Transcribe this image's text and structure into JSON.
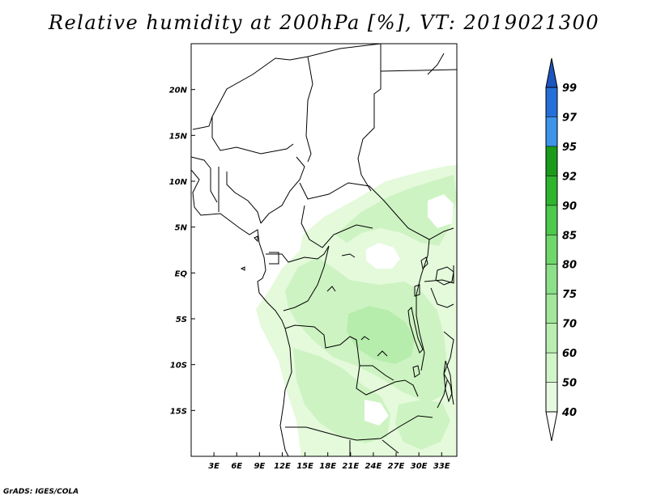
{
  "title": "Relative humidity at 200hPa [%], VT: 2019021300",
  "credit": "GrADS: IGES/COLA",
  "map": {
    "lon_range": [
      0,
      35
    ],
    "lat_range": [
      -20,
      25
    ],
    "lon_ticks": [
      "3E",
      "6E",
      "9E",
      "12E",
      "15E",
      "18E",
      "21E",
      "24E",
      "27E",
      "30E",
      "33E"
    ],
    "lat_ticks": [
      "20N",
      "15N",
      "10N",
      "5N",
      "EQ",
      "5S",
      "10S",
      "15S"
    ]
  },
  "colorbar": {
    "levels": [
      "40",
      "50",
      "60",
      "70",
      "75",
      "80",
      "85",
      "90",
      "92",
      "95",
      "97",
      "99"
    ],
    "colors": [
      "#ffffff",
      "#e6fae0",
      "#d0f5c8",
      "#b9eeb0",
      "#a2e79a",
      "#8be089",
      "#6fd86a",
      "#4dc94b",
      "#2fb42e",
      "#1a9c1a",
      "#3d94e8",
      "#2570d8",
      "#1c55c0"
    ]
  },
  "humidity_palette": {
    "light": "#e4fadb",
    "mid": "#cdf3c2",
    "deep": "#b6ecac"
  }
}
